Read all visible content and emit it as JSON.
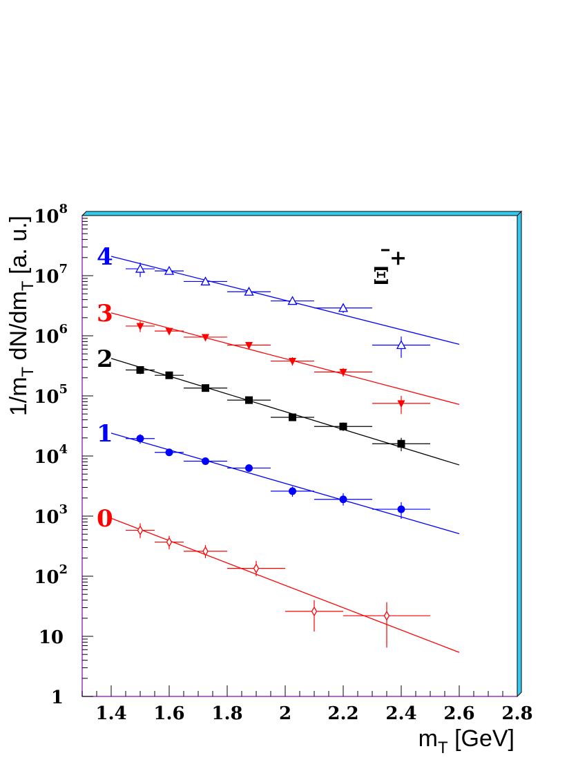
{
  "chart_data": {
    "type": "scatter",
    "x_scale": "linear",
    "y_scale": "log",
    "xlim": [
      1.3,
      2.8
    ],
    "ylim": [
      1,
      100000000
    ],
    "x_ticks": [
      "1.4",
      "1.6",
      "1.8",
      "2",
      "2.2",
      "2.4",
      "2.6",
      "2.8"
    ],
    "x_tick_values": [
      1.4,
      1.6,
      1.8,
      2.0,
      2.2,
      2.4,
      2.6,
      2.8
    ],
    "y_ticks": [
      {
        "base": "1",
        "exp": ""
      },
      {
        "base": "10",
        "exp": ""
      },
      {
        "base": "10",
        "exp": "2"
      },
      {
        "base": "10",
        "exp": "3"
      },
      {
        "base": "10",
        "exp": "4"
      },
      {
        "base": "10",
        "exp": "5"
      },
      {
        "base": "10",
        "exp": "6"
      },
      {
        "base": "10",
        "exp": "7"
      },
      {
        "base": "10",
        "exp": "8"
      }
    ],
    "x_label_main": "m",
    "x_label_sub": "T",
    "x_label_unit": "[GeV]",
    "y_label": {
      "p1": "1/m",
      "s1": "T",
      "p2": " dN/dm",
      "s2": "T",
      "p3": "  [a. u.]"
    },
    "particle_label": {
      "base": "Ξ",
      "sup": "+"
    },
    "series": [
      {
        "name": "0",
        "color": "#ff0000",
        "marker": "open-diamond",
        "points": [
          {
            "x": 1.5,
            "y": 580,
            "xerr": 0.05,
            "ylo": 430,
            "yhi": 760
          },
          {
            "x": 1.6,
            "y": 370,
            "xerr": 0.05,
            "ylo": 280,
            "yhi": 470
          },
          {
            "x": 1.725,
            "y": 260,
            "xerr": 0.075,
            "ylo": 200,
            "yhi": 330
          },
          {
            "x": 1.9,
            "y": 135,
            "xerr": 0.1,
            "ylo": 100,
            "yhi": 180
          },
          {
            "x": 2.1,
            "y": 26,
            "xerr": 0.1,
            "ylo": 12,
            "yhi": 40
          },
          {
            "x": 2.35,
            "y": 22,
            "xerr": 0.15,
            "ylo": 6.5,
            "yhi": 37
          }
        ],
        "fit": {
          "x0": 1.4,
          "y0": 920,
          "x1": 2.6,
          "y1": 5.4
        }
      },
      {
        "name": "1",
        "color": "#0000ff",
        "marker": "filled-circle",
        "points": [
          {
            "x": 1.5,
            "y": 19500,
            "xerr": 0.05,
            "ylo": 16000,
            "yhi": 23000
          },
          {
            "x": 1.6,
            "y": 11500,
            "xerr": 0.05,
            "ylo": 10000,
            "yhi": 13000
          },
          {
            "x": 1.725,
            "y": 8200,
            "xerr": 0.075,
            "ylo": 7300,
            "yhi": 9200
          },
          {
            "x": 1.875,
            "y": 6300,
            "xerr": 0.075,
            "ylo": 5600,
            "yhi": 7000
          },
          {
            "x": 2.025,
            "y": 2600,
            "xerr": 0.075,
            "ylo": 2100,
            "yhi": 3100
          },
          {
            "x": 2.2,
            "y": 1900,
            "xerr": 0.1,
            "ylo": 1500,
            "yhi": 2400
          },
          {
            "x": 2.4,
            "y": 1300,
            "xerr": 0.1,
            "ylo": 900,
            "yhi": 1700
          }
        ],
        "fit": {
          "x0": 1.4,
          "y0": 24000,
          "x1": 2.6,
          "y1": 510
        }
      },
      {
        "name": "2",
        "color": "#000000",
        "marker": "filled-square",
        "points": [
          {
            "x": 1.5,
            "y": 270000,
            "xerr": 0.05,
            "ylo": 230000,
            "yhi": 310000
          },
          {
            "x": 1.6,
            "y": 220000,
            "xerr": 0.05,
            "ylo": 195000,
            "yhi": 245000
          },
          {
            "x": 1.725,
            "y": 135000,
            "xerr": 0.075,
            "ylo": 122000,
            "yhi": 150000
          },
          {
            "x": 1.875,
            "y": 85000,
            "xerr": 0.075,
            "ylo": 77000,
            "yhi": 93000
          },
          {
            "x": 2.025,
            "y": 44000,
            "xerr": 0.075,
            "ylo": 39000,
            "yhi": 50000
          },
          {
            "x": 2.2,
            "y": 31000,
            "xerr": 0.1,
            "ylo": 26000,
            "yhi": 36000
          },
          {
            "x": 2.4,
            "y": 16000,
            "xerr": 0.1,
            "ylo": 12000,
            "yhi": 20000
          }
        ],
        "fit": {
          "x0": 1.4,
          "y0": 420000,
          "x1": 2.6,
          "y1": 7100
        }
      },
      {
        "name": "3",
        "color": "#ff0000",
        "marker": "filled-triangle-down",
        "points": [
          {
            "x": 1.5,
            "y": 1450000,
            "xerr": 0.05,
            "ylo": 1150000,
            "yhi": 1750000
          },
          {
            "x": 1.6,
            "y": 1200000,
            "xerr": 0.05,
            "ylo": 1050000,
            "yhi": 1350000
          },
          {
            "x": 1.725,
            "y": 950000,
            "xerr": 0.075,
            "ylo": 850000,
            "yhi": 1050000
          },
          {
            "x": 1.875,
            "y": 700000,
            "xerr": 0.075,
            "ylo": 620000,
            "yhi": 780000
          },
          {
            "x": 2.025,
            "y": 380000,
            "xerr": 0.075,
            "ylo": 320000,
            "yhi": 440000
          },
          {
            "x": 2.2,
            "y": 250000,
            "xerr": 0.1,
            "ylo": 210000,
            "yhi": 290000
          },
          {
            "x": 2.4,
            "y": 75000,
            "xerr": 0.1,
            "ylo": 50000,
            "yhi": 100000
          }
        ],
        "fit": {
          "x0": 1.4,
          "y0": 2400000,
          "x1": 2.6,
          "y1": 72000
        }
      },
      {
        "name": "4",
        "color": "#0000ff",
        "marker": "open-triangle-up",
        "points": [
          {
            "x": 1.5,
            "y": 13000000,
            "xerr": 0.05,
            "ylo": 9500000,
            "yhi": 16500000
          },
          {
            "x": 1.6,
            "y": 12000000,
            "xerr": 0.05,
            "ylo": 10500000,
            "yhi": 13500000
          },
          {
            "x": 1.725,
            "y": 8000000,
            "xerr": 0.075,
            "ylo": 7200000,
            "yhi": 8800000
          },
          {
            "x": 1.875,
            "y": 5400000,
            "xerr": 0.075,
            "ylo": 4700000,
            "yhi": 6100000
          },
          {
            "x": 2.025,
            "y": 3800000,
            "xerr": 0.075,
            "ylo": 3300000,
            "yhi": 4300000
          },
          {
            "x": 2.2,
            "y": 2900000,
            "xerr": 0.1,
            "ylo": 2400000,
            "yhi": 3400000
          },
          {
            "x": 2.4,
            "y": 700000,
            "xerr": 0.1,
            "ylo": 430000,
            "yhi": 970000
          }
        ],
        "fit": {
          "x0": 1.4,
          "y0": 21000000,
          "x1": 2.6,
          "y1": 720000
        }
      }
    ],
    "frame_color": "#33ccee",
    "axis_color": "#9933cc"
  }
}
